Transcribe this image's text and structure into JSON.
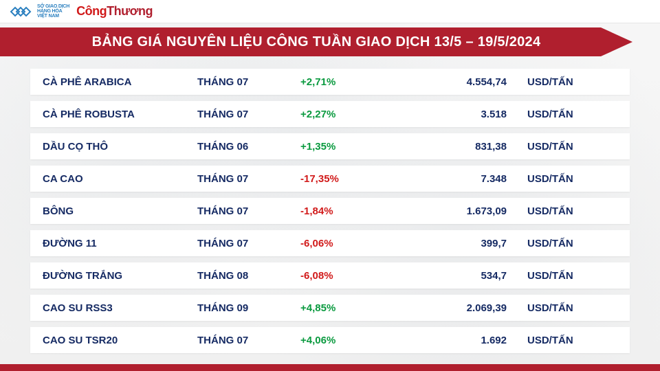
{
  "colors": {
    "banner_bg": "#b01f2e",
    "row_bg": "#ffffff",
    "text_primary": "#152a63",
    "change_up": "#0a9a3f",
    "change_down": "#d11a1a",
    "brand_part1": "#d11a1a",
    "brand_part2": "#b01f2e",
    "logo_blue": "#2a7fbf",
    "footer_bar": "#b01f2e"
  },
  "header": {
    "logo_lines": [
      "SỞ GIAO DỊCH",
      "HÀNG HÓA",
      "VIỆT NAM"
    ],
    "brand_part1": "Công",
    "brand_part2": "Thương"
  },
  "title": "BẢNG GIÁ NGUYÊN LIỆU CÔNG TUẦN GIAO DỊCH 13/5 – 19/5/2024",
  "unit_label": "USD/TẤN",
  "rows": [
    {
      "name": "CÀ PHÊ ARABICA",
      "month": "THÁNG 07",
      "change": "+2,71%",
      "dir": "up",
      "price": "4.554,74"
    },
    {
      "name": "CÀ PHÊ ROBUSTA",
      "month": "THÁNG 07",
      "change": "+2,27%",
      "dir": "up",
      "price": "3.518"
    },
    {
      "name": "DẦU CỌ THÔ",
      "month": "THÁNG 06",
      "change": "+1,35%",
      "dir": "up",
      "price": "831,38"
    },
    {
      "name": "CA CAO",
      "month": "THÁNG 07",
      "change": "-17,35%",
      "dir": "down",
      "price": "7.348"
    },
    {
      "name": "BÔNG",
      "month": "THÁNG 07",
      "change": "-1,84%",
      "dir": "down",
      "price": "1.673,09"
    },
    {
      "name": "ĐƯỜNG 11",
      "month": "THÁNG 07",
      "change": "-6,06%",
      "dir": "down",
      "price": "399,7"
    },
    {
      "name": "ĐƯỜNG TRẮNG",
      "month": "THÁNG 08",
      "change": "-6,08%",
      "dir": "down",
      "price": "534,7"
    },
    {
      "name": "CAO SU RSS3",
      "month": "THÁNG 09",
      "change": "+4,85%",
      "dir": "up",
      "price": "2.069,39"
    },
    {
      "name": "CAO SU TSR20",
      "month": "THÁNG 07",
      "change": "+4,06%",
      "dir": "up",
      "price": "1.692"
    }
  ]
}
